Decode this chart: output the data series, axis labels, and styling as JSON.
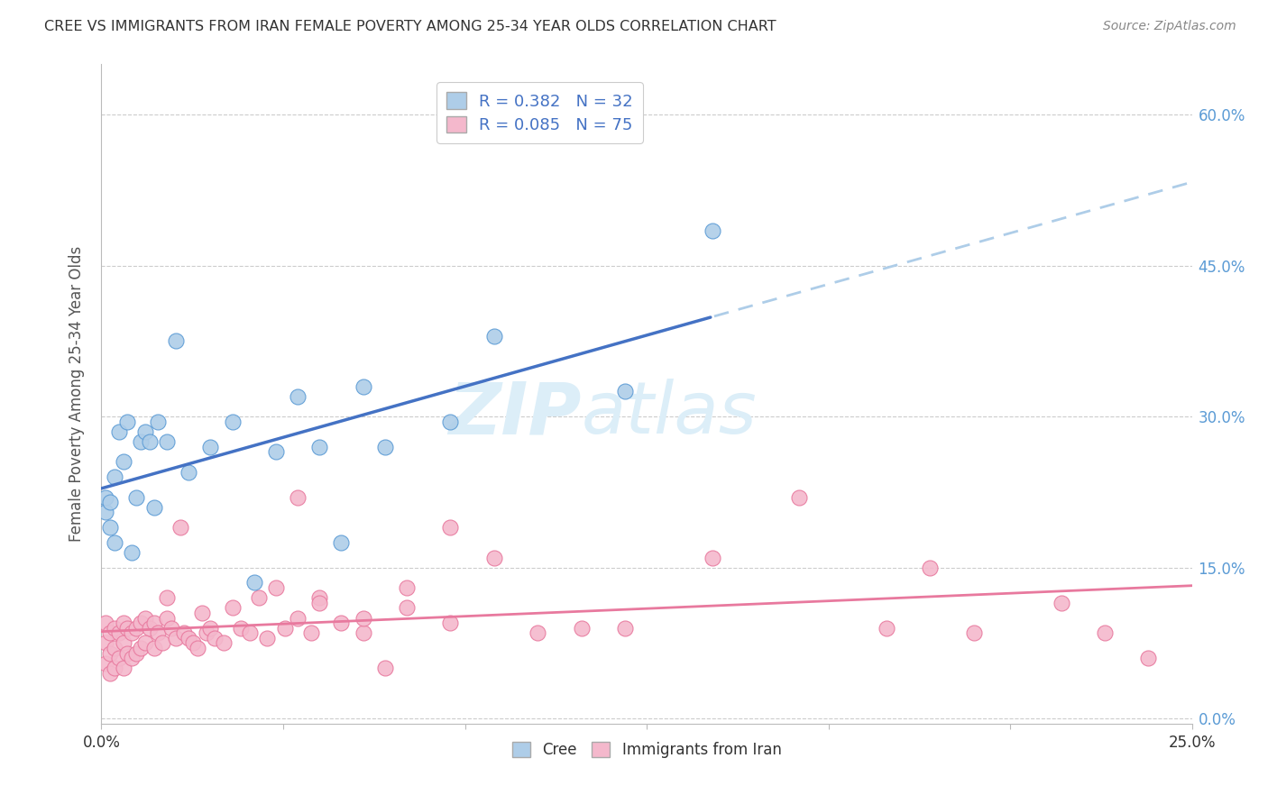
{
  "title": "CREE VS IMMIGRANTS FROM IRAN FEMALE POVERTY AMONG 25-34 YEAR OLDS CORRELATION CHART",
  "source": "Source: ZipAtlas.com",
  "ylabel": "Female Poverty Among 25-34 Year Olds",
  "xlim": [
    0.0,
    0.25
  ],
  "ylim": [
    -0.005,
    0.65
  ],
  "legend_r1": "R = 0.382",
  "legend_n1": "N = 32",
  "legend_r2": "R = 0.085",
  "legend_n2": "N = 75",
  "legend_label1": "Cree",
  "legend_label2": "Immigrants from Iran",
  "blue_color": "#aecde8",
  "pink_color": "#f4b8cc",
  "blue_dot_edge": "#5b9bd5",
  "pink_dot_edge": "#e8799e",
  "blue_line_color": "#4472c4",
  "pink_line_color": "#e8799e",
  "gray_dash_color": "#aecde8",
  "watermark_color": "#dceef8",
  "cree_x": [
    0.001,
    0.001,
    0.002,
    0.002,
    0.003,
    0.003,
    0.004,
    0.005,
    0.006,
    0.007,
    0.008,
    0.009,
    0.01,
    0.011,
    0.012,
    0.013,
    0.015,
    0.017,
    0.02,
    0.025,
    0.03,
    0.035,
    0.04,
    0.045,
    0.05,
    0.055,
    0.06,
    0.065,
    0.08,
    0.09,
    0.12,
    0.14
  ],
  "cree_y": [
    0.205,
    0.22,
    0.19,
    0.215,
    0.175,
    0.24,
    0.285,
    0.255,
    0.295,
    0.165,
    0.22,
    0.275,
    0.285,
    0.275,
    0.21,
    0.295,
    0.275,
    0.375,
    0.245,
    0.27,
    0.295,
    0.135,
    0.265,
    0.32,
    0.27,
    0.175,
    0.33,
    0.27,
    0.295,
    0.38,
    0.325,
    0.485
  ],
  "iran_x": [
    0.001,
    0.001,
    0.001,
    0.002,
    0.002,
    0.002,
    0.003,
    0.003,
    0.003,
    0.004,
    0.004,
    0.005,
    0.005,
    0.005,
    0.006,
    0.006,
    0.007,
    0.007,
    0.008,
    0.008,
    0.009,
    0.009,
    0.01,
    0.01,
    0.011,
    0.012,
    0.012,
    0.013,
    0.014,
    0.015,
    0.015,
    0.016,
    0.017,
    0.018,
    0.019,
    0.02,
    0.021,
    0.022,
    0.023,
    0.024,
    0.025,
    0.026,
    0.028,
    0.03,
    0.032,
    0.034,
    0.036,
    0.038,
    0.04,
    0.042,
    0.045,
    0.048,
    0.05,
    0.055,
    0.06,
    0.065,
    0.07,
    0.08,
    0.09,
    0.1,
    0.11,
    0.12,
    0.14,
    0.16,
    0.18,
    0.19,
    0.2,
    0.22,
    0.23,
    0.24,
    0.045,
    0.05,
    0.06,
    0.07,
    0.08
  ],
  "iran_y": [
    0.095,
    0.075,
    0.055,
    0.085,
    0.065,
    0.045,
    0.09,
    0.07,
    0.05,
    0.085,
    0.06,
    0.095,
    0.075,
    0.05,
    0.09,
    0.065,
    0.085,
    0.06,
    0.09,
    0.065,
    0.095,
    0.07,
    0.1,
    0.075,
    0.09,
    0.095,
    0.07,
    0.085,
    0.075,
    0.1,
    0.12,
    0.09,
    0.08,
    0.19,
    0.085,
    0.08,
    0.075,
    0.07,
    0.105,
    0.085,
    0.09,
    0.08,
    0.075,
    0.11,
    0.09,
    0.085,
    0.12,
    0.08,
    0.13,
    0.09,
    0.1,
    0.085,
    0.12,
    0.095,
    0.085,
    0.05,
    0.11,
    0.19,
    0.16,
    0.085,
    0.09,
    0.09,
    0.16,
    0.22,
    0.09,
    0.15,
    0.085,
    0.115,
    0.085,
    0.06,
    0.22,
    0.115,
    0.1,
    0.13,
    0.095
  ]
}
